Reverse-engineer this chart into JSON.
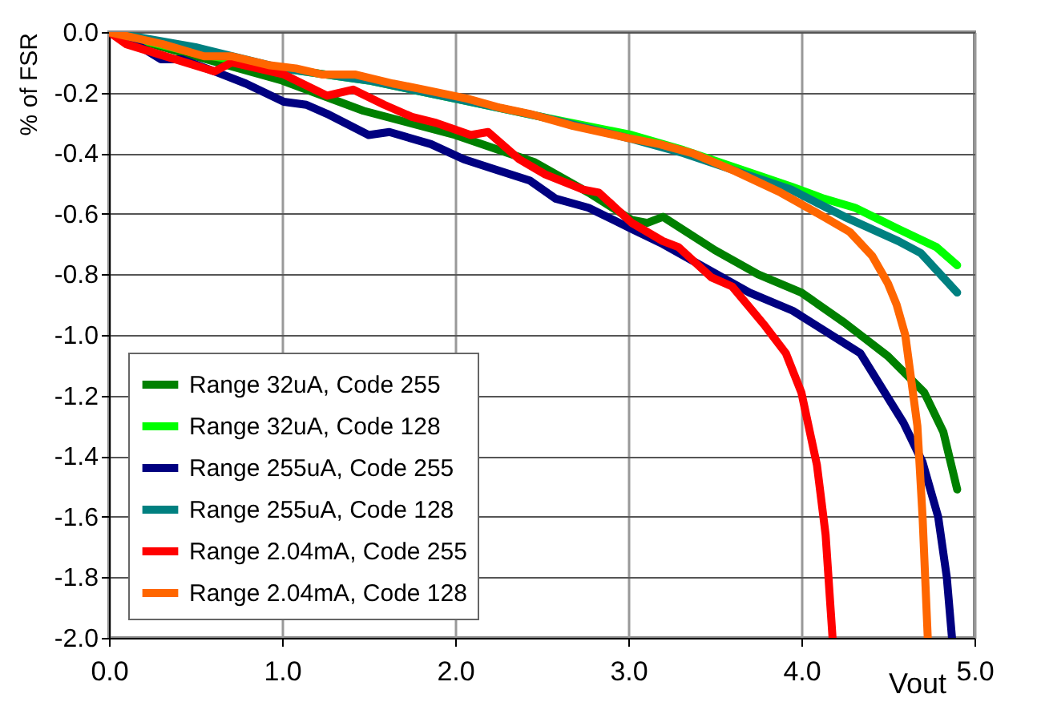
{
  "chart_data": {
    "type": "line",
    "xlabel": "Vout",
    "ylabel": "% of FSR",
    "xlim": [
      0,
      5
    ],
    "ylim": [
      -2,
      0
    ],
    "xticks": [
      {
        "value": 0,
        "label": "0.0"
      },
      {
        "value": 1,
        "label": "1.0"
      },
      {
        "value": 2,
        "label": "2.0"
      },
      {
        "value": 3,
        "label": "3.0"
      },
      {
        "value": 4,
        "label": "4.0"
      },
      {
        "value": 5,
        "label": "5.0"
      }
    ],
    "yticks": [
      {
        "value": -2,
        "label": "-2.0"
      },
      -1.8,
      -1.6,
      -1.4,
      -1.2,
      {
        "value": -1,
        "label": "-1.0"
      },
      -0.8,
      -0.6,
      -0.4,
      -0.2,
      {
        "value": 0,
        "label": "0.0"
      }
    ],
    "grid": true,
    "legend": "bottom left",
    "line_style": "solid",
    "series": [
      {
        "name": "Range 32uA, Code 255",
        "color": "#008000",
        "x": [
          0,
          0.5,
          1.0,
          1.47,
          2.0,
          2.46,
          2.77,
          3.02,
          3.11,
          3.2,
          3.5,
          3.75,
          4.0,
          4.25,
          4.5,
          4.71,
          4.82,
          4.9
        ],
        "values": [
          0,
          -0.08,
          -0.16,
          -0.26,
          -0.34,
          -0.43,
          -0.53,
          -0.62,
          -0.63,
          -0.61,
          -0.72,
          -0.8,
          -0.86,
          -0.96,
          -1.07,
          -1.19,
          -1.32,
          -1.51
        ]
      },
      {
        "name": "Range 32uA, Code 128",
        "color": "#00ff00",
        "x": [
          0,
          0.5,
          1.0,
          1.5,
          2.0,
          2.5,
          3.02,
          3.32,
          3.63,
          3.94,
          4.13,
          4.31,
          4.56,
          4.78,
          4.9
        ],
        "values": [
          0,
          -0.07,
          -0.12,
          -0.16,
          -0.22,
          -0.28,
          -0.34,
          -0.39,
          -0.45,
          -0.51,
          -0.55,
          -0.58,
          -0.65,
          -0.71,
          -0.77
        ]
      },
      {
        "name": "Range 255uA, Code 255",
        "color": "#000080",
        "x": [
          0,
          0.1,
          0.3,
          0.42,
          0.61,
          0.79,
          1.01,
          1.14,
          1.26,
          1.5,
          1.62,
          1.86,
          2.05,
          2.21,
          2.43,
          2.58,
          2.77,
          3.02,
          3.2,
          3.45,
          3.7,
          3.95,
          4.34,
          4.59,
          4.7,
          4.79,
          4.84,
          4.87
        ],
        "values": [
          0,
          -0.02,
          -0.09,
          -0.09,
          -0.13,
          -0.17,
          -0.23,
          -0.24,
          -0.27,
          -0.34,
          -0.33,
          -0.37,
          -0.42,
          -0.45,
          -0.49,
          -0.55,
          -0.58,
          -0.65,
          -0.7,
          -0.78,
          -0.86,
          -0.92,
          -1.06,
          -1.29,
          -1.42,
          -1.6,
          -1.8,
          -2.0
        ]
      },
      {
        "name": "Range 255uA, Code 128",
        "color": "#008080",
        "x": [
          0,
          0.5,
          1.0,
          1.5,
          2.0,
          2.5,
          3.0,
          3.32,
          3.63,
          3.94,
          4.25,
          4.56,
          4.69,
          4.9
        ],
        "values": [
          0,
          -0.05,
          -0.12,
          -0.16,
          -0.22,
          -0.28,
          -0.35,
          -0.4,
          -0.46,
          -0.52,
          -0.61,
          -0.69,
          -0.73,
          -0.86
        ]
      },
      {
        "name": "Range 2.04mA, Code 255",
        "color": "#ff0000",
        "x": [
          0,
          0.1,
          0.61,
          0.71,
          1.01,
          1.26,
          1.41,
          1.59,
          1.75,
          1.89,
          2.09,
          2.19,
          2.37,
          2.52,
          2.74,
          2.83,
          3.02,
          3.2,
          3.29,
          3.48,
          3.6,
          3.79,
          3.91,
          4.0,
          4.09,
          4.14,
          4.18
        ],
        "values": [
          0,
          -0.04,
          -0.13,
          -0.1,
          -0.14,
          -0.21,
          -0.19,
          -0.24,
          -0.28,
          -0.3,
          -0.34,
          -0.33,
          -0.42,
          -0.47,
          -0.52,
          -0.53,
          -0.63,
          -0.69,
          -0.71,
          -0.81,
          -0.84,
          -0.97,
          -1.06,
          -1.19,
          -1.43,
          -1.66,
          -2.0
        ]
      },
      {
        "name": "Range 2.04mA, Code 128",
        "color": "#ff6600",
        "x": [
          0,
          0.31,
          0.55,
          0.71,
          0.93,
          1.08,
          1.23,
          1.42,
          1.64,
          1.82,
          2.07,
          2.26,
          2.43,
          2.68,
          3.0,
          3.18,
          3.37,
          3.62,
          3.88,
          4.13,
          4.28,
          4.41,
          4.5,
          4.55,
          4.6,
          4.67,
          4.7,
          4.73
        ],
        "values": [
          0,
          -0.04,
          -0.08,
          -0.08,
          -0.11,
          -0.12,
          -0.14,
          -0.14,
          -0.17,
          -0.19,
          -0.22,
          -0.25,
          -0.27,
          -0.31,
          -0.35,
          -0.37,
          -0.4,
          -0.46,
          -0.53,
          -0.61,
          -0.66,
          -0.74,
          -0.83,
          -0.9,
          -1.0,
          -1.3,
          -1.6,
          -2.0
        ]
      }
    ]
  }
}
